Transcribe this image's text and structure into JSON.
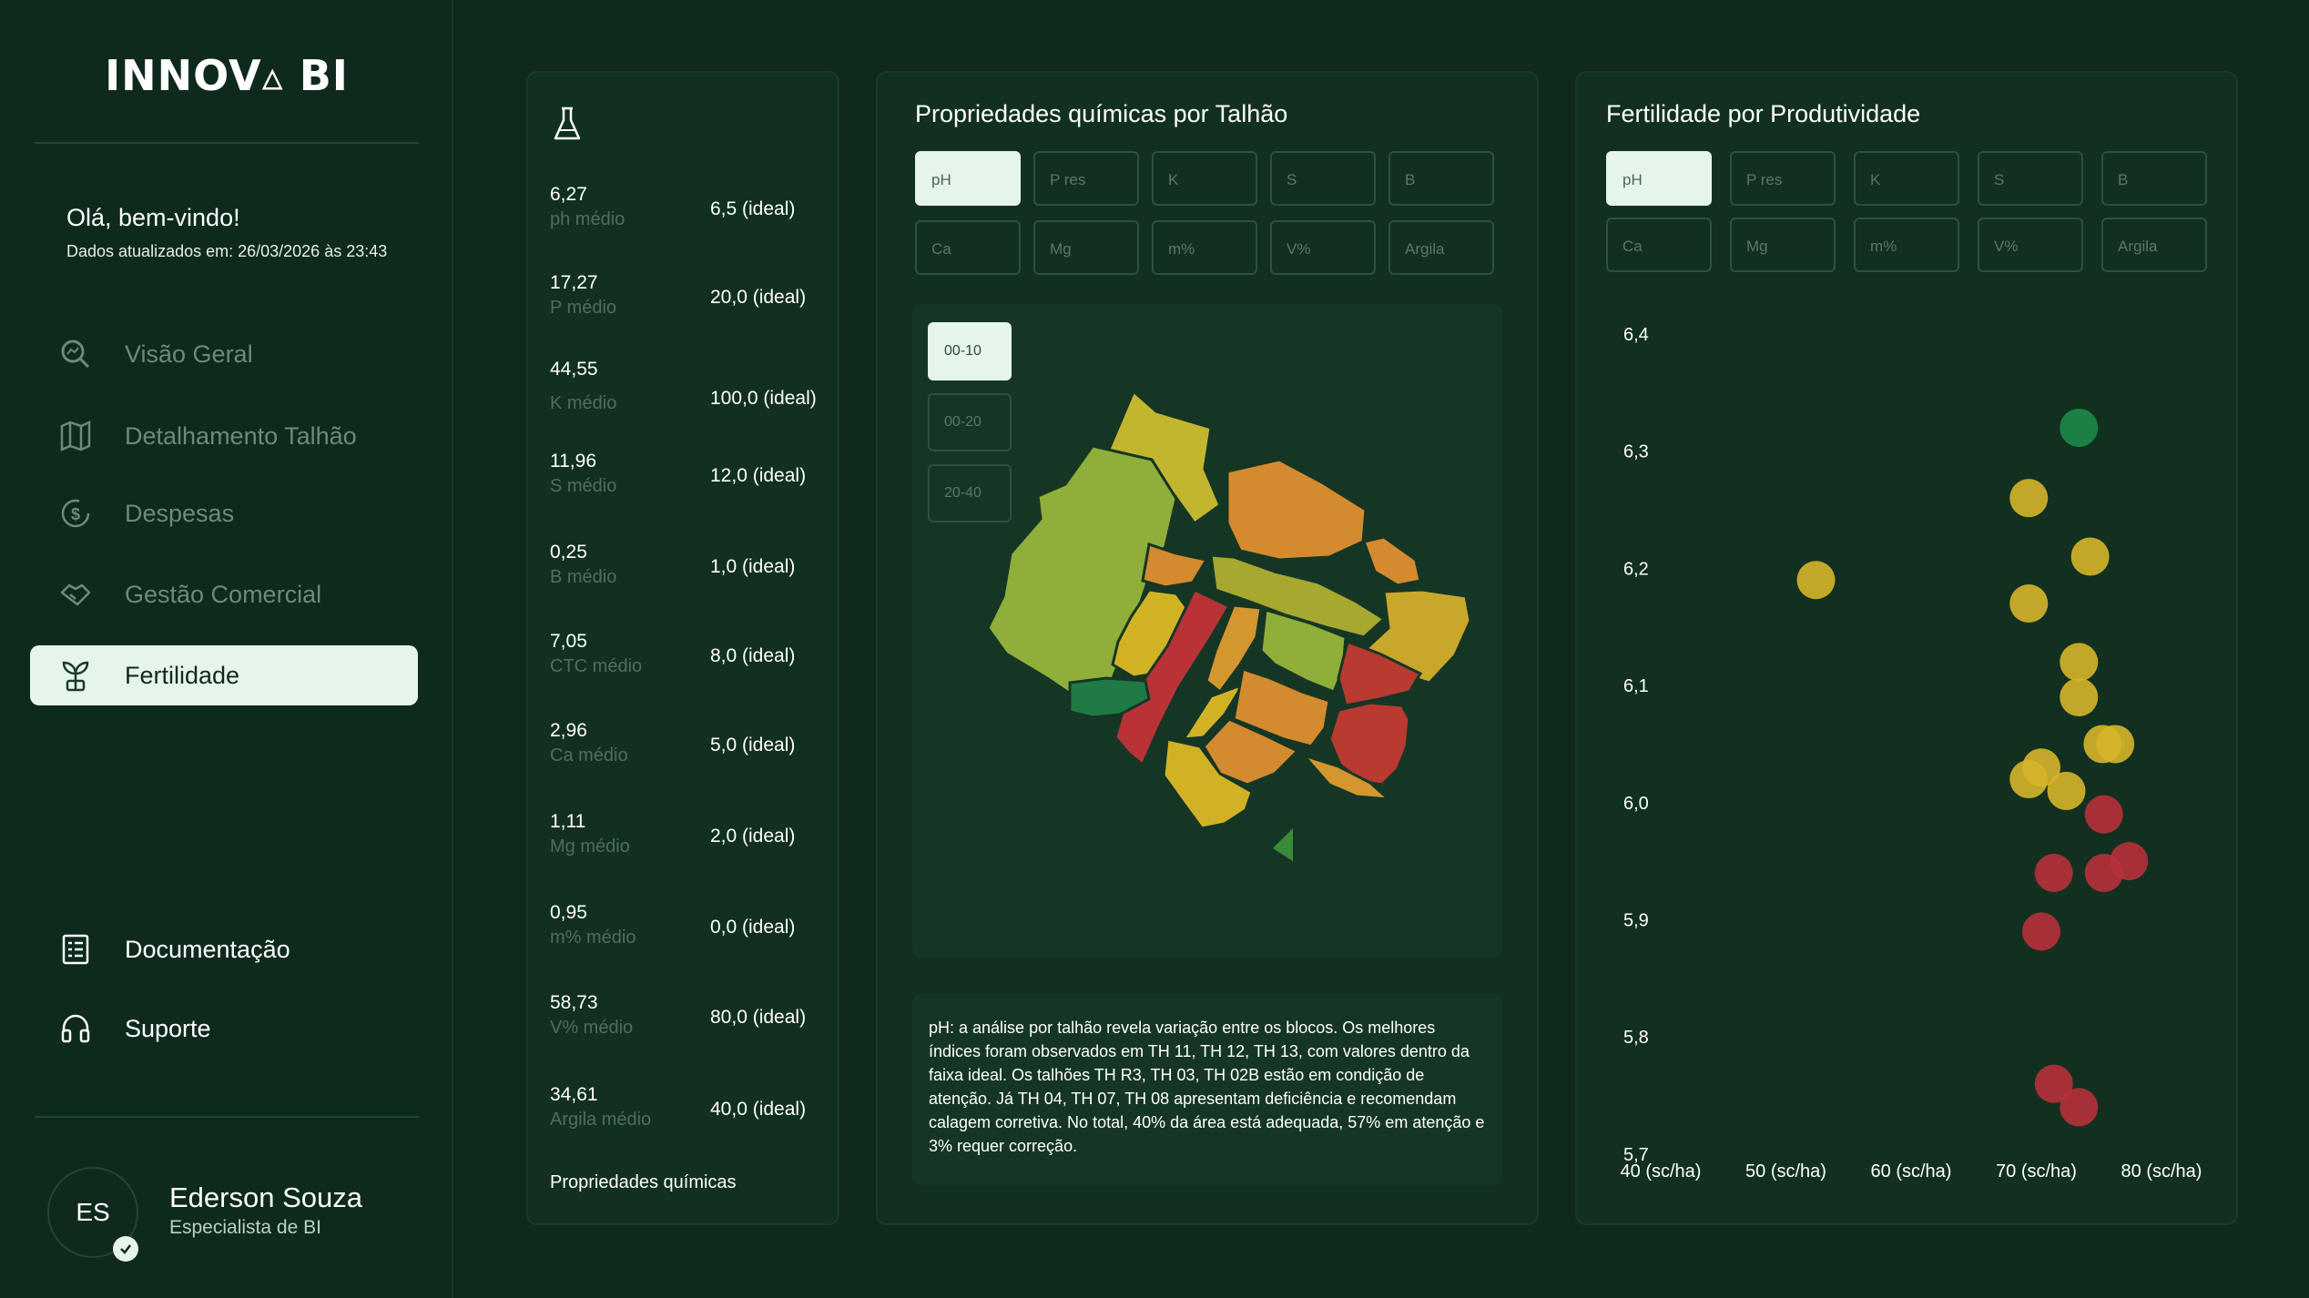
{
  "app": {
    "logo": "INNOV▵ BI"
  },
  "sidebar": {
    "welcome": "Olá, bem-vindo!",
    "updated": "Dados atualizados em: 26/03/2026 às 23:43",
    "nav": [
      {
        "label": "Visão Geral",
        "icon": "search-chart-icon"
      },
      {
        "label": "Detalhamento Talhão",
        "icon": "map-icon"
      },
      {
        "label": "Despesas",
        "icon": "dollar-cycle-icon"
      },
      {
        "label": "Gestão Comercial",
        "icon": "handshake-icon"
      },
      {
        "label": "Fertilidade",
        "icon": "sprout-icon",
        "active": true
      }
    ],
    "bottom_nav": [
      {
        "label": "Documentação",
        "icon": "document-icon"
      },
      {
        "label": "Suporte",
        "icon": "headset-icon"
      }
    ],
    "user": {
      "initials": "ES",
      "name": "Ederson Souza",
      "role": "Especialista de BI"
    }
  },
  "properties": {
    "icon": "flask-icon",
    "items": [
      {
        "value": "6,27",
        "label": "ph médio",
        "ideal": "6,5 (ideal)"
      },
      {
        "value": "17,27",
        "label": "P médio",
        "ideal": "20,0 (ideal)"
      },
      {
        "value": "44,55",
        "label": "K médio",
        "ideal": "100,0 (ideal)"
      },
      {
        "value": "11,96",
        "label": "S médio",
        "ideal": "12,0 (ideal)"
      },
      {
        "value": "0,25",
        "label": "B médio",
        "ideal": "1,0 (ideal)"
      },
      {
        "value": "7,05",
        "label": "CTC médio",
        "ideal": "8,0 (ideal)"
      },
      {
        "value": "2,96",
        "label": "Ca médio",
        "ideal": "5,0 (ideal)"
      },
      {
        "value": "1,11",
        "label": "Mg médio",
        "ideal": "2,0 (ideal)"
      },
      {
        "value": "0,95",
        "label": "m% médio",
        "ideal": "0,0 (ideal)"
      },
      {
        "value": "58,73",
        "label": "V% médio",
        "ideal": "80,0 (ideal)"
      },
      {
        "value": "34,61",
        "label": "Argila médio",
        "ideal": "40,0 (ideal)"
      }
    ],
    "footer": "Propriedades químicas"
  },
  "talhao": {
    "title": "Propriedades químicas por Talhão",
    "buttons_row1": [
      "pH",
      "P res",
      "K",
      "S",
      "B"
    ],
    "buttons_row2": [
      "Ca",
      "Mg",
      "m%",
      "V%",
      "Argila"
    ],
    "selected": "pH",
    "depths": [
      "00-10",
      "00-20",
      "20-40"
    ],
    "selected_depth": "00-10",
    "map_colors": {
      "green": "#8fae3a",
      "yellow": "#d4b526",
      "orange": "#d48a2e",
      "red": "#c0353a",
      "dark_green": "#1f7a45"
    },
    "analysis": "pH: a análise por talhão revela variação entre os blocos. Os melhores índices foram observados em TH 11, TH 12, TH 13, com valores dentro da faixa ideal. Os talhões TH R3, TH 03, TH 02B estão em condição de atenção. Já TH 04, TH 07, TH 08 apresentam deficiência e recomendam calagem corretiva. No total, 40% da área está adequada, 57% em atenção e 3% requer correção."
  },
  "fertilidade": {
    "title": "Fertilidade por Produtividade",
    "buttons_row1": [
      "pH",
      "P res",
      "K",
      "S",
      "B"
    ],
    "buttons_row2": [
      "Ca",
      "Mg",
      "m%",
      "V%",
      "Argila"
    ],
    "selected": "pH"
  },
  "chart_data": {
    "type": "scatter",
    "title": "Fertilidade por Produtividade",
    "xlabel": "",
    "ylabel": "",
    "xlim": [
      40,
      80
    ],
    "ylim": [
      5.7,
      6.4
    ],
    "x_ticks": [
      "40 (sc/ha)",
      "50 (sc/ha)",
      "60 (sc/ha)",
      "70 (sc/ha)",
      "80 (sc/ha)"
    ],
    "y_ticks": [
      "6,4",
      "6,3",
      "6,2",
      "6,1",
      "6,0",
      "5,9",
      "5,8",
      "5,7"
    ],
    "colors": {
      "green": "#1e8a4a",
      "yellow": "#d6b52a",
      "red": "#b8303a"
    },
    "points": [
      {
        "x": 73.4,
        "y": 6.32,
        "c": "green"
      },
      {
        "x": 69.4,
        "y": 6.26,
        "c": "yellow"
      },
      {
        "x": 74.3,
        "y": 6.21,
        "c": "yellow"
      },
      {
        "x": 52.4,
        "y": 6.19,
        "c": "yellow"
      },
      {
        "x": 69.4,
        "y": 6.17,
        "c": "yellow"
      },
      {
        "x": 73.4,
        "y": 6.12,
        "c": "yellow"
      },
      {
        "x": 73.4,
        "y": 6.09,
        "c": "yellow"
      },
      {
        "x": 75.3,
        "y": 6.05,
        "c": "yellow"
      },
      {
        "x": 76.3,
        "y": 6.05,
        "c": "yellow"
      },
      {
        "x": 70.4,
        "y": 6.03,
        "c": "yellow"
      },
      {
        "x": 69.4,
        "y": 6.02,
        "c": "yellow"
      },
      {
        "x": 72.4,
        "y": 6.01,
        "c": "yellow"
      },
      {
        "x": 75.4,
        "y": 5.99,
        "c": "red"
      },
      {
        "x": 77.4,
        "y": 5.95,
        "c": "red"
      },
      {
        "x": 71.4,
        "y": 5.94,
        "c": "red"
      },
      {
        "x": 75.4,
        "y": 5.94,
        "c": "red"
      },
      {
        "x": 70.4,
        "y": 5.89,
        "c": "red"
      },
      {
        "x": 71.4,
        "y": 5.76,
        "c": "red"
      },
      {
        "x": 73.4,
        "y": 5.74,
        "c": "red"
      }
    ]
  }
}
